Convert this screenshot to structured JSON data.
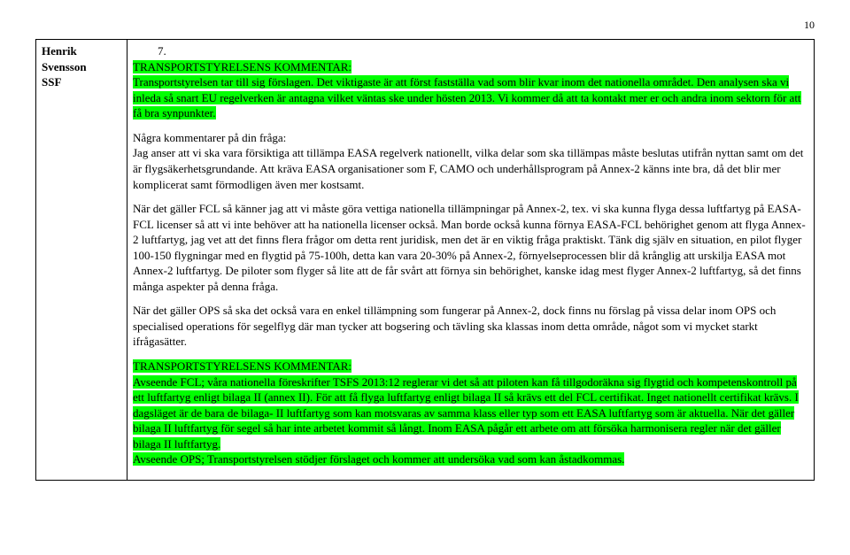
{
  "pageNumber": "10",
  "leftCell": {
    "line1": "Henrik",
    "line2": "Svensson",
    "line3": "SSF"
  },
  "itemNumber": "7.",
  "commentHeader": "TRANSPORTSTYRELSENS KOMMENTAR:",
  "comment1a": "Transportstyrelsen tar till sig förslagen. ",
  "comment1b": "Det viktigaste är att först fastställa vad som blir kvar inom det nationella området. Den analysen ska vi inleda så snart EU regelverken är antagna vilket väntas ske under hösten 2013. Vi kommer då att ta kontakt mer er och andra inom sektorn för att få bra synpunkter.",
  "para2a": "Några kommentarer på din fråga:",
  "para2b": "Jag anser att vi ska vara försiktiga att tillämpa EASA regelverk nationellt, vilka delar som ska tillämpas måste beslutas utifrån nyttan samt om det är flygsäkerhetsgrundande. Att kräva EASA organisationer som F, CAMO och underhållsprogram på Annex-2 känns inte bra, då det blir mer komplicerat samt förmodligen även mer kostsamt.",
  "para3": "När det gäller FCL så känner jag att vi måste göra vettiga nationella tillämpningar på Annex-2, tex. vi ska kunna flyga dessa luftfartyg på EASA-FCL licenser så att vi inte behöver att ha nationella licenser också. Man borde också kunna förnya EASA-FCL behörighet genom att flyga Annex-2 luftfartyg, jag vet att det finns flera frågor om detta rent juridisk, men det är en viktig fråga praktiskt. Tänk dig själv en situation, en pilot flyger 100-150 flygningar med en flygtid på 75-100h, detta kan vara 20-30% på Annex-2, förnyelseprocessen blir då krånglig att urskilja EASA mot Annex-2 luftfartyg. De piloter som flyger så lite att de får svårt att förnya sin behörighet, kanske idag mest flyger Annex-2 luftfartyg, så det finns många aspekter på denna fråga.",
  "para4": "När det gäller OPS så ska det också vara en enkel tillämpning som fungerar på Annex-2, dock finns nu förslag på vissa delar inom OPS och specialised operations för segelflyg där man tycker att bogsering och tävling ska klassas inom detta område, något som vi mycket starkt ifrågasätter.",
  "commentHeader2": "TRANSPORTSTYRELSENS KOMMENTAR:",
  "comment2a": "Avseende FCL; våra nationella föreskrifter TSFS 2013:12 reglerar vi det så att piloten kan få tillgodoräkna sig flygtid och kompetenskontroll på ett luftfartyg enligt bilaga II (annex II).",
  "comment2b": " För att få flyga luftfartyg enligt bilaga II så krävs ett del FCL certifikat.",
  "comment2c": " Inget nationellt certifikat krävs.",
  "comment2d": " I dagsläget är de bara de bilaga- II luftfartyg som kan motsvaras av samma klass eller typ som ett EASA luftfartyg som är aktuella.",
  "comment2e": " När det gäller bilaga II luftfartyg för segel så har inte arbetet kommit så långt. Inom EASA pågår ett arbete om att försöka harmonisera regler när det gäller bilaga II luftfartyg.",
  "comment2f": "Avseende OPS; Transportstyrelsen stödjer förslaget och kommer att undersöka vad som kan åstadkommas."
}
